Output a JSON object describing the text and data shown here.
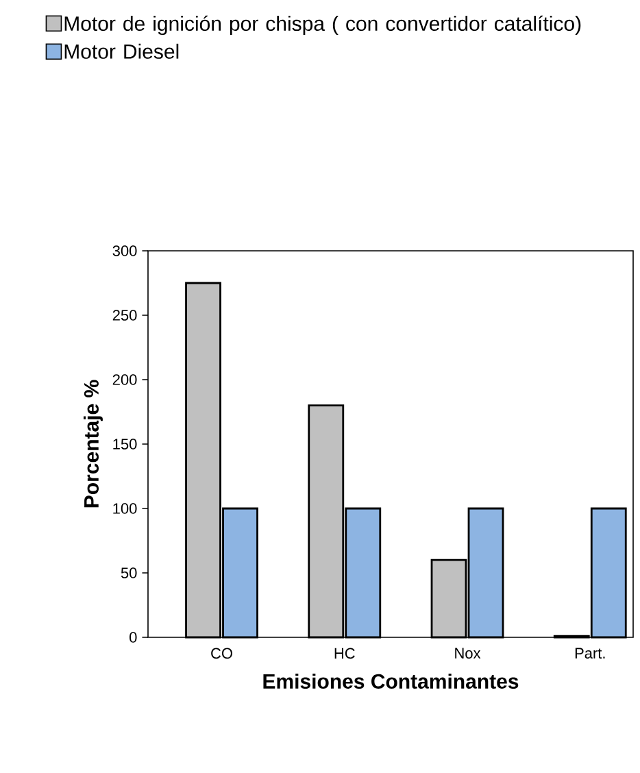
{
  "chart_data": {
    "type": "bar",
    "xlabel": "Emisiones Contaminantes",
    "ylabel": "Porcentaje %",
    "categories": [
      "CO",
      "HC",
      "Nox",
      "Part."
    ],
    "series": [
      {
        "name": "Motor de ignición por chispa ( con convertidor catalítico)",
        "color": "#c0c0c0",
        "values": [
          275,
          180,
          60,
          1
        ]
      },
      {
        "name": "Motor Diesel",
        "color": "#8db4e2",
        "values": [
          100,
          100,
          100,
          100
        ]
      }
    ],
    "ylim": [
      0,
      300
    ],
    "yticks": [
      0,
      50,
      100,
      150,
      200,
      250,
      300
    ],
    "legend": "top left"
  }
}
